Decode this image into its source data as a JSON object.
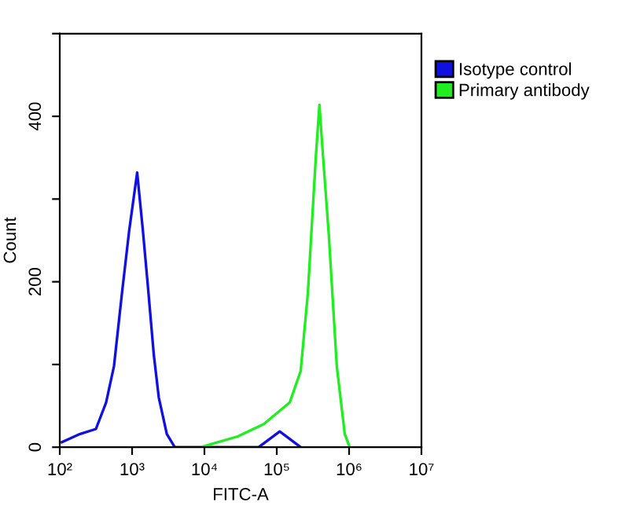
{
  "chart_data": {
    "type": "line",
    "xlabel": "FITC-A",
    "ylabel": "Count",
    "log": "x",
    "legend": "top right",
    "grid": false,
    "xlim": [
      100,
      10000000
    ],
    "ylim": [
      0,
      500
    ],
    "xticks": [
      {
        "value": 100,
        "label": "10²"
      },
      {
        "value": 1000,
        "label": "10³"
      },
      {
        "value": 10000,
        "label": "10⁴"
      },
      {
        "value": 100000,
        "label": "10⁵"
      },
      {
        "value": 1000000,
        "label": "10⁶"
      },
      {
        "value": 10000000,
        "label": "10⁷"
      }
    ],
    "yticks": [
      0,
      {
        "value": 100,
        "label": null
      },
      200,
      {
        "value": 300,
        "label": null
      },
      400,
      {
        "value": 500,
        "label": null
      }
    ],
    "series": [
      {
        "name": "Isotype control",
        "color": "#1010e0",
        "x": [
          107,
          191,
          316,
          437,
          562,
          724,
          912,
          1175,
          1410,
          1660,
          2000,
          2340,
          3020,
          3890,
          56200,
          110000,
          214000
        ],
        "values": [
          6,
          16,
          22,
          54,
          98,
          186,
          262,
          332,
          262,
          193,
          111,
          60,
          16,
          0,
          0,
          19,
          0
        ]
      },
      {
        "name": "Primary antibody",
        "color": "#20ee20",
        "x": [
          8910,
          28800,
          66100,
          151000,
          214000,
          269000,
          347000,
          389000,
          427000,
          525000,
          676000,
          871000,
          1020000
        ],
        "values": [
          0,
          13,
          28,
          54,
          92,
          186,
          351,
          414,
          363,
          256,
          98,
          16,
          0
        ]
      }
    ]
  }
}
